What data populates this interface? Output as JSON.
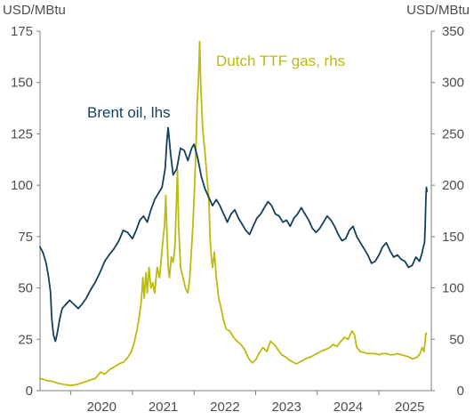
{
  "chart_data": {
    "type": "line",
    "left_unit": "USD/MBtu",
    "right_unit": "USD/MBtu",
    "y_left": {
      "min": 0,
      "max": 175,
      "ticks": [
        0,
        25,
        50,
        75,
        100,
        125,
        150,
        175
      ]
    },
    "y_right": {
      "min": 0,
      "max": 350,
      "ticks": [
        0,
        50,
        100,
        150,
        200,
        250,
        300,
        350
      ]
    },
    "x": {
      "min": 2019.5,
      "max": 2025.85,
      "tick_labels": [
        "2020",
        "2021",
        "2022",
        "2023",
        "2024",
        "2025"
      ]
    },
    "grid": false,
    "series": [
      {
        "name": "Brent oil, lhs",
        "axis": "left",
        "color": "#14405e",
        "points": [
          [
            2019.5,
            70
          ],
          [
            2019.55,
            67
          ],
          [
            2019.6,
            62
          ],
          [
            2019.64,
            55
          ],
          [
            2019.67,
            48
          ],
          [
            2019.69,
            35
          ],
          [
            2019.72,
            27
          ],
          [
            2019.75,
            24
          ],
          [
            2019.78,
            28
          ],
          [
            2019.82,
            35
          ],
          [
            2019.86,
            40
          ],
          [
            2019.92,
            42
          ],
          [
            2019.98,
            44
          ],
          [
            2020.05,
            42
          ],
          [
            2020.12,
            40
          ],
          [
            2020.18,
            42
          ],
          [
            2020.25,
            45
          ],
          [
            2020.32,
            49
          ],
          [
            2020.4,
            53
          ],
          [
            2020.48,
            58
          ],
          [
            2020.55,
            63
          ],
          [
            2020.62,
            66
          ],
          [
            2020.7,
            69
          ],
          [
            2020.78,
            73
          ],
          [
            2020.85,
            78
          ],
          [
            2020.92,
            77
          ],
          [
            2021.0,
            74
          ],
          [
            2021.06,
            78
          ],
          [
            2021.12,
            83
          ],
          [
            2021.18,
            85
          ],
          [
            2021.24,
            82
          ],
          [
            2021.3,
            88
          ],
          [
            2021.36,
            93
          ],
          [
            2021.42,
            96
          ],
          [
            2021.48,
            99
          ],
          [
            2021.53,
            108
          ],
          [
            2021.56,
            122
          ],
          [
            2021.58,
            128
          ],
          [
            2021.62,
            115
          ],
          [
            2021.66,
            105
          ],
          [
            2021.72,
            108
          ],
          [
            2021.78,
            118
          ],
          [
            2021.84,
            117
          ],
          [
            2021.9,
            112
          ],
          [
            2021.96,
            118
          ],
          [
            2022.0,
            120
          ],
          [
            2022.06,
            113
          ],
          [
            2022.12,
            104
          ],
          [
            2022.18,
            98
          ],
          [
            2022.24,
            94
          ],
          [
            2022.3,
            90
          ],
          [
            2022.36,
            93
          ],
          [
            2022.42,
            90
          ],
          [
            2022.48,
            86
          ],
          [
            2022.54,
            82
          ],
          [
            2022.6,
            86
          ],
          [
            2022.66,
            88
          ],
          [
            2022.72,
            84
          ],
          [
            2022.78,
            81
          ],
          [
            2022.84,
            78
          ],
          [
            2022.9,
            76
          ],
          [
            2022.96,
            80
          ],
          [
            2023.02,
            84
          ],
          [
            2023.08,
            86
          ],
          [
            2023.14,
            89
          ],
          [
            2023.2,
            92
          ],
          [
            2023.26,
            90
          ],
          [
            2023.32,
            86
          ],
          [
            2023.38,
            85
          ],
          [
            2023.44,
            82
          ],
          [
            2023.5,
            83
          ],
          [
            2023.56,
            80
          ],
          [
            2023.62,
            84
          ],
          [
            2023.68,
            86
          ],
          [
            2023.74,
            89
          ],
          [
            2023.8,
            86
          ],
          [
            2023.86,
            83
          ],
          [
            2023.92,
            79
          ],
          [
            2023.98,
            77
          ],
          [
            2024.04,
            79
          ],
          [
            2024.1,
            82
          ],
          [
            2024.16,
            85
          ],
          [
            2024.22,
            83
          ],
          [
            2024.28,
            80
          ],
          [
            2024.34,
            76
          ],
          [
            2024.4,
            73
          ],
          [
            2024.46,
            74
          ],
          [
            2024.52,
            78
          ],
          [
            2024.58,
            80
          ],
          [
            2024.64,
            75
          ],
          [
            2024.7,
            72
          ],
          [
            2024.76,
            69
          ],
          [
            2024.82,
            66
          ],
          [
            2024.88,
            62
          ],
          [
            2024.94,
            63
          ],
          [
            2025.0,
            66
          ],
          [
            2025.06,
            70
          ],
          [
            2025.12,
            72
          ],
          [
            2025.18,
            68
          ],
          [
            2025.24,
            65
          ],
          [
            2025.3,
            66
          ],
          [
            2025.36,
            64
          ],
          [
            2025.42,
            63
          ],
          [
            2025.48,
            60
          ],
          [
            2025.54,
            61
          ],
          [
            2025.6,
            65
          ],
          [
            2025.66,
            63
          ],
          [
            2025.7,
            67
          ],
          [
            2025.72,
            70
          ],
          [
            2025.74,
            72
          ],
          [
            2025.75,
            80
          ],
          [
            2025.76,
            92
          ],
          [
            2025.77,
            99
          ],
          [
            2025.78,
            97
          ]
        ]
      },
      {
        "name": "Dutch TTF gas, rhs",
        "axis": "right",
        "color": "#bcbb0e",
        "points": [
          [
            2019.5,
            12
          ],
          [
            2019.6,
            10
          ],
          [
            2019.7,
            9
          ],
          [
            2019.8,
            7
          ],
          [
            2019.9,
            6
          ],
          [
            2020.0,
            5
          ],
          [
            2020.1,
            6
          ],
          [
            2020.2,
            8
          ],
          [
            2020.3,
            10
          ],
          [
            2020.4,
            12
          ],
          [
            2020.48,
            18
          ],
          [
            2020.55,
            16
          ],
          [
            2020.62,
            20
          ],
          [
            2020.7,
            23
          ],
          [
            2020.78,
            26
          ],
          [
            2020.86,
            28
          ],
          [
            2020.92,
            32
          ],
          [
            2020.98,
            38
          ],
          [
            2021.02,
            45
          ],
          [
            2021.06,
            55
          ],
          [
            2021.1,
            68
          ],
          [
            2021.14,
            85
          ],
          [
            2021.17,
            110
          ],
          [
            2021.19,
            90
          ],
          [
            2021.22,
            115
          ],
          [
            2021.24,
            95
          ],
          [
            2021.27,
            120
          ],
          [
            2021.3,
            100
          ],
          [
            2021.33,
            105
          ],
          [
            2021.36,
            95
          ],
          [
            2021.4,
            120
          ],
          [
            2021.44,
            110
          ],
          [
            2021.47,
            130
          ],
          [
            2021.5,
            150
          ],
          [
            2021.52,
            160
          ],
          [
            2021.54,
            190
          ],
          [
            2021.56,
            155
          ],
          [
            2021.58,
            120
          ],
          [
            2021.6,
            110
          ],
          [
            2021.63,
            130
          ],
          [
            2021.66,
            125
          ],
          [
            2021.69,
            140
          ],
          [
            2021.71,
            175
          ],
          [
            2021.73,
            215
          ],
          [
            2021.75,
            160
          ],
          [
            2021.78,
            120
          ],
          [
            2021.82,
            110
          ],
          [
            2021.86,
            100
          ],
          [
            2021.9,
            95
          ],
          [
            2021.93,
            110
          ],
          [
            2021.96,
            140
          ],
          [
            2021.98,
            160
          ],
          [
            2022.01,
            200
          ],
          [
            2022.03,
            235
          ],
          [
            2022.05,
            280
          ],
          [
            2022.07,
            300
          ],
          [
            2022.09,
            340
          ],
          [
            2022.11,
            295
          ],
          [
            2022.14,
            255
          ],
          [
            2022.18,
            230
          ],
          [
            2022.22,
            200
          ],
          [
            2022.24,
            185
          ],
          [
            2022.26,
            150
          ],
          [
            2022.28,
            130
          ],
          [
            2022.3,
            120
          ],
          [
            2022.33,
            135
          ],
          [
            2022.36,
            110
          ],
          [
            2022.4,
            90
          ],
          [
            2022.44,
            80
          ],
          [
            2022.48,
            68
          ],
          [
            2022.52,
            60
          ],
          [
            2022.58,
            58
          ],
          [
            2022.64,
            52
          ],
          [
            2022.7,
            48
          ],
          [
            2022.76,
            45
          ],
          [
            2022.82,
            40
          ],
          [
            2022.88,
            32
          ],
          [
            2022.94,
            27
          ],
          [
            2023.0,
            30
          ],
          [
            2023.06,
            37
          ],
          [
            2023.12,
            42
          ],
          [
            2023.18,
            38
          ],
          [
            2023.24,
            48
          ],
          [
            2023.3,
            45
          ],
          [
            2023.36,
            40
          ],
          [
            2023.42,
            35
          ],
          [
            2023.48,
            33
          ],
          [
            2023.54,
            30
          ],
          [
            2023.6,
            28
          ],
          [
            2023.66,
            26
          ],
          [
            2023.72,
            28
          ],
          [
            2023.78,
            30
          ],
          [
            2023.84,
            32
          ],
          [
            2023.9,
            33
          ],
          [
            2023.96,
            35
          ],
          [
            2024.02,
            37
          ],
          [
            2024.08,
            39
          ],
          [
            2024.14,
            40
          ],
          [
            2024.2,
            42
          ],
          [
            2024.26,
            45
          ],
          [
            2024.32,
            43
          ],
          [
            2024.38,
            48
          ],
          [
            2024.44,
            52
          ],
          [
            2024.5,
            50
          ],
          [
            2024.56,
            58
          ],
          [
            2024.6,
            55
          ],
          [
            2024.64,
            42
          ],
          [
            2024.7,
            38
          ],
          [
            2024.76,
            37
          ],
          [
            2024.82,
            36
          ],
          [
            2024.88,
            36
          ],
          [
            2024.94,
            36
          ],
          [
            2025.0,
            35
          ],
          [
            2025.06,
            36
          ],
          [
            2025.12,
            36
          ],
          [
            2025.18,
            35
          ],
          [
            2025.24,
            35
          ],
          [
            2025.3,
            36
          ],
          [
            2025.36,
            35
          ],
          [
            2025.42,
            34
          ],
          [
            2025.48,
            33
          ],
          [
            2025.54,
            31
          ],
          [
            2025.6,
            32
          ],
          [
            2025.66,
            35
          ],
          [
            2025.7,
            42
          ],
          [
            2025.73,
            38
          ],
          [
            2025.75,
            48
          ],
          [
            2025.76,
            56
          ],
          [
            2025.77,
            55
          ]
        ]
      }
    ]
  }
}
